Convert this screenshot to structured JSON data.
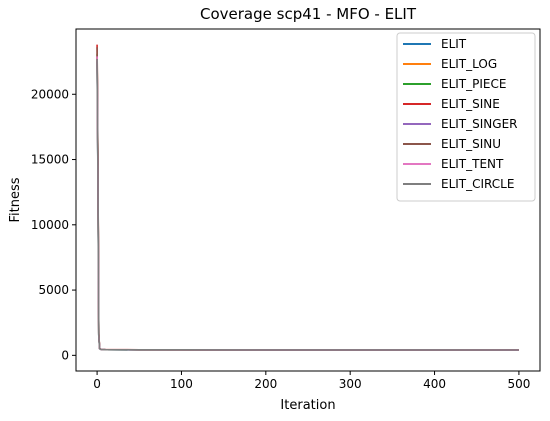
{
  "chart_data": {
    "type": "line",
    "title": "Coverage scp41 - MFO - ELIT",
    "xlabel": "Iteration",
    "ylabel": "Fitness",
    "xlim": [
      -25,
      525
    ],
    "ylim": [
      -1200,
      25000
    ],
    "xticks": [
      0,
      100,
      200,
      300,
      400,
      500
    ],
    "yticks": [
      0,
      5000,
      10000,
      15000,
      20000
    ],
    "grid": false,
    "legend_position": "top-right",
    "series": [
      {
        "name": "ELIT",
        "color": "#1f77b4",
        "x": [
          0,
          1,
          2,
          3,
          5,
          10,
          50,
          100,
          200,
          300,
          400,
          500
        ],
        "y": [
          22500,
          14000,
          1500,
          500,
          440,
          430,
          425,
          420,
          415,
          412,
          410,
          408
        ]
      },
      {
        "name": "ELIT_LOG",
        "color": "#ff7f0e",
        "x": [
          0,
          1,
          2,
          3,
          5,
          10,
          50,
          100,
          200,
          300,
          400,
          500
        ],
        "y": [
          22800,
          14500,
          1600,
          520,
          445,
          432,
          426,
          421,
          416,
          413,
          411,
          409
        ]
      },
      {
        "name": "ELIT_PIECE",
        "color": "#2ca02c",
        "x": [
          0,
          1,
          2,
          3,
          5,
          10,
          50,
          100,
          200,
          300,
          400,
          500
        ],
        "y": [
          23100,
          13800,
          1550,
          510,
          442,
          431,
          425,
          420,
          415,
          412,
          410,
          408
        ]
      },
      {
        "name": "ELIT_SINE",
        "color": "#d62728",
        "x": [
          0,
          1,
          2,
          3,
          5,
          10,
          50,
          100,
          200,
          300,
          400,
          500
        ],
        "y": [
          23800,
          15000,
          1700,
          530,
          448,
          434,
          427,
          422,
          417,
          414,
          412,
          410
        ]
      },
      {
        "name": "ELIT_SINGER",
        "color": "#9467bd",
        "x": [
          0,
          1,
          2,
          3,
          5,
          10,
          50,
          100,
          200,
          300,
          400,
          500
        ],
        "y": [
          22600,
          13500,
          1500,
          505,
          441,
          430,
          424,
          419,
          414,
          411,
          409,
          407
        ]
      },
      {
        "name": "ELIT_SINU",
        "color": "#8c564b",
        "x": [
          0,
          1,
          2,
          3,
          5,
          10,
          50,
          100,
          200,
          300,
          400,
          500
        ],
        "y": [
          23600,
          14800,
          1650,
          525,
          446,
          433,
          426,
          421,
          416,
          413,
          411,
          409
        ]
      },
      {
        "name": "ELIT_TENT",
        "color": "#e377c2",
        "x": [
          0,
          1,
          2,
          3,
          5,
          10,
          50,
          100,
          200,
          300,
          400,
          500
        ],
        "y": [
          22900,
          14200,
          1580,
          515,
          444,
          432,
          425,
          420,
          415,
          412,
          410,
          408
        ]
      },
      {
        "name": "ELIT_CIRCLE",
        "color": "#7f7f7f",
        "x": [
          0,
          1,
          2,
          3,
          5,
          10,
          50,
          100,
          200,
          300,
          400,
          500
        ],
        "y": [
          22700,
          14100,
          1560,
          512,
          443,
          431,
          425,
          420,
          415,
          412,
          410,
          408
        ]
      }
    ]
  }
}
